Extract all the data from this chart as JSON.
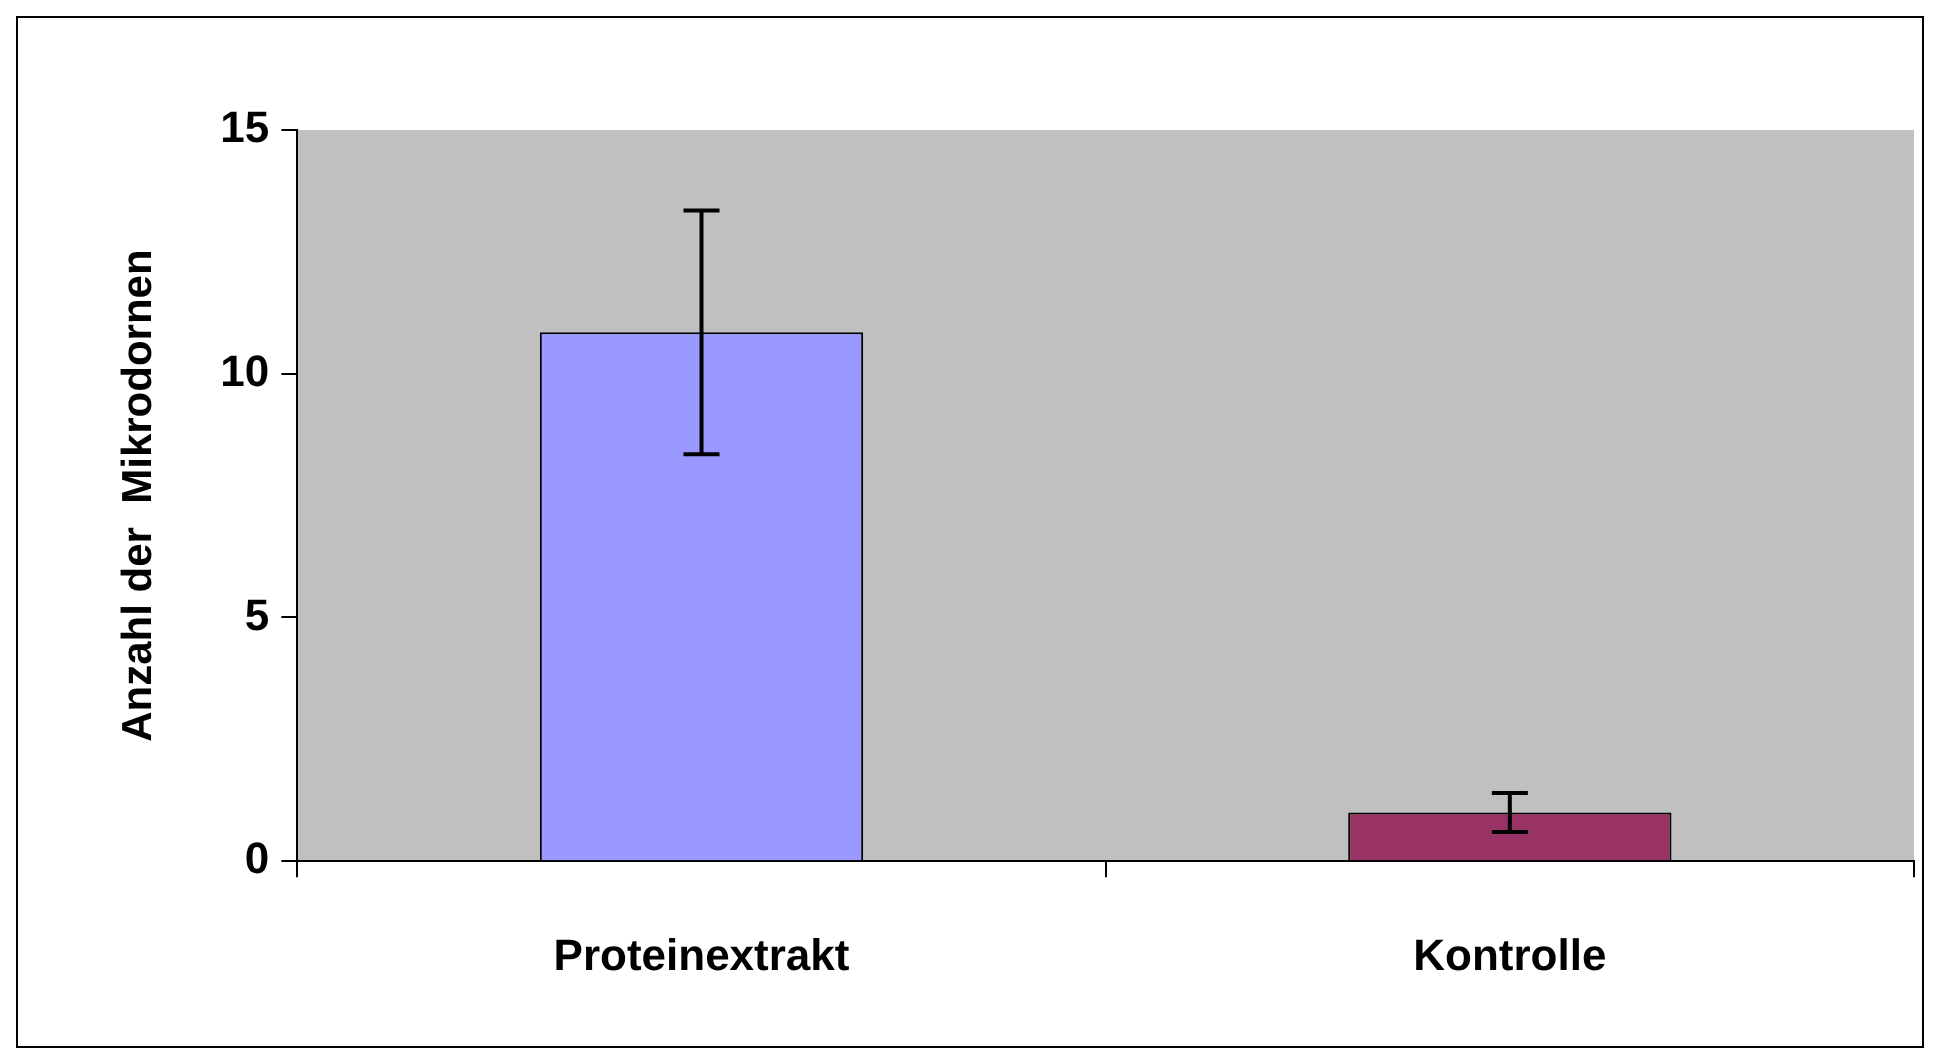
{
  "chart_data": {
    "type": "bar",
    "ylabel": "Anzahl der  Mikrodornen",
    "categories": [
      "Proteinextrakt",
      "Kontrolle"
    ],
    "values": [
      10.85,
      1.0
    ],
    "colors": [
      "#9999ff",
      "#993366"
    ],
    "errors": [
      2.5,
      0.4
    ],
    "ylim": [
      0,
      15
    ],
    "yticks": [
      0,
      5,
      10,
      15
    ],
    "grid": false,
    "legend": false
  }
}
